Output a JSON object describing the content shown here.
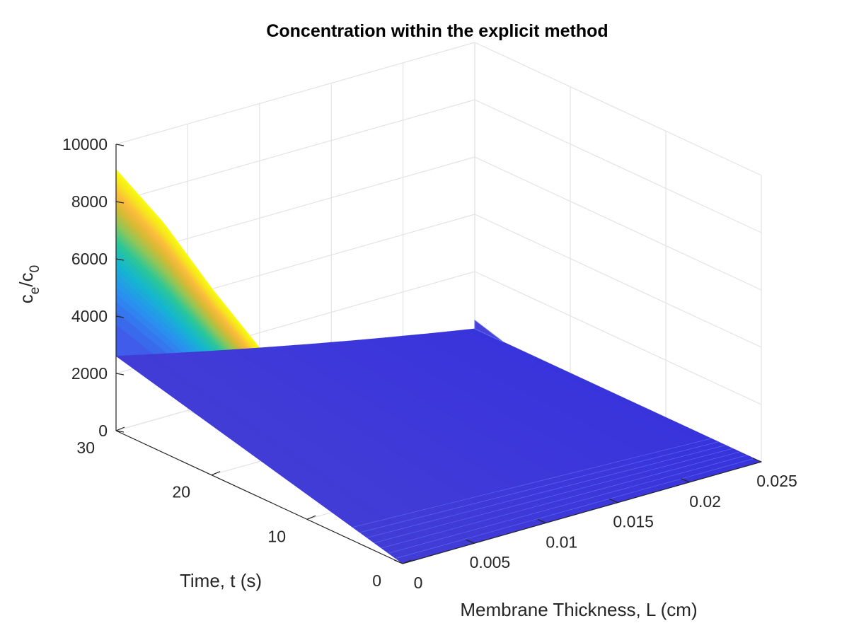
{
  "chart_data": {
    "type": "surface",
    "title": "Concentration within the explicit method",
    "xlabel": "Membrane Thickness, L (cm)",
    "ylabel": "Time, t (s)",
    "zlabel": {
      "base": "c",
      "sub1": "e",
      "mid": "/c",
      "sub2": "0"
    },
    "xlim": [
      0,
      0.025
    ],
    "ylim": [
      0,
      30
    ],
    "zlim": [
      0,
      10000
    ],
    "xticks": [
      0,
      0.005,
      0.01,
      0.015,
      0.02,
      0.025
    ],
    "xtick_labels": [
      "0",
      "0.005",
      "0.01",
      "0.015",
      "0.02",
      "0.025"
    ],
    "yticks": [
      0,
      10,
      20,
      30
    ],
    "ytick_labels": [
      "0",
      "10",
      "20",
      "30"
    ],
    "zticks": [
      0,
      2000,
      4000,
      6000,
      8000,
      10000
    ],
    "ztick_labels": [
      "0",
      "2000",
      "4000",
      "6000",
      "8000",
      "10000"
    ],
    "grid": true,
    "colormap": "parula",
    "colormap_stops": [
      "#3e26a8",
      "#4352e8",
      "#2b8ef2",
      "#14b5d0",
      "#2bc79a",
      "#8bc75a",
      "#d4ba35",
      "#fbba3d",
      "#f5e51f",
      "#f9fb0e"
    ],
    "surface_profile": {
      "x_fraction_at_left_edge": 0.0008,
      "surface_at_x0": {
        "t": [
          30,
          25,
          20,
          15,
          10,
          5,
          0
        ],
        "value": [
          9100,
          8000,
          6500,
          5200,
          4300,
          3000,
          1100
        ]
      },
      "far_edge_t30_value": 2600,
      "far_edge_t0_value": 0
    }
  }
}
